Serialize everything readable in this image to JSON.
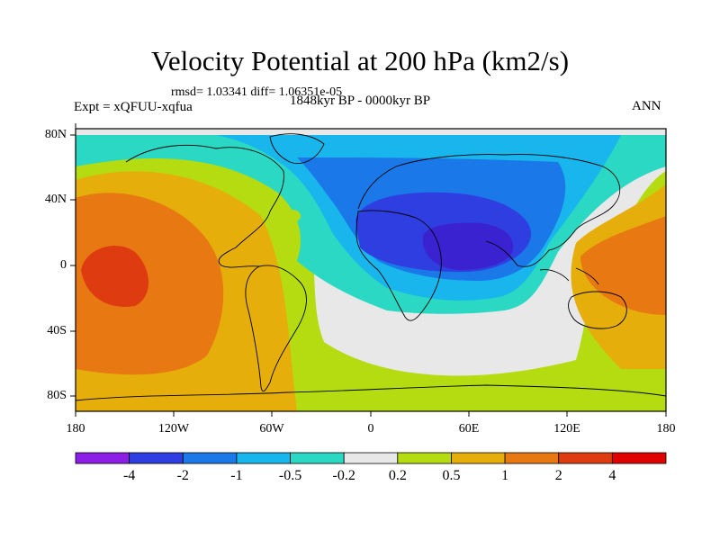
{
  "title": "Velocity Potential at 200 hPa (km2/s)",
  "stats": "rmsd= 1.03341 diff= 1.06351e-05",
  "experiment": "Expt = xQFUU-xqfua",
  "period": "1848kyr BP - 0000kyr BP",
  "season": "ANN",
  "lat_labels": [
    "80N",
    "40N",
    "0",
    "40S",
    "80S"
  ],
  "lon_labels": [
    "180",
    "120W",
    "60W",
    "0",
    "60E",
    "120E",
    "180"
  ],
  "colorbar": {
    "labels": [
      "-4",
      "-2",
      "-1",
      "-0.5",
      "-0.2",
      "0.2",
      "0.5",
      "1",
      "2",
      "4"
    ],
    "colors": [
      "#8c1ee6",
      "#2f3ee0",
      "#1a78e8",
      "#18b6ec",
      "#2ad8c4",
      "#e8e8e8",
      "#b4dc10",
      "#e6ae0a",
      "#e87812",
      "#de3c10",
      "#e00000"
    ]
  },
  "colors": {
    "background": "#e8e8e8",
    "land_outline": "#000000"
  }
}
